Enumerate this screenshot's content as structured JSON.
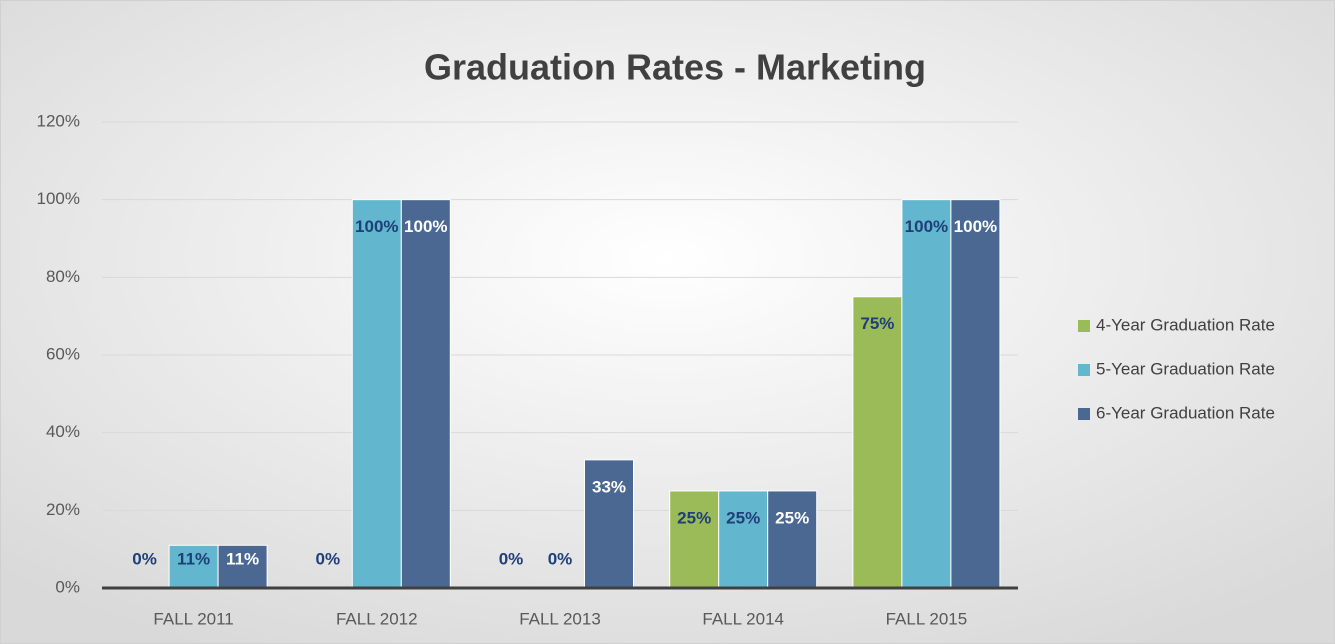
{
  "chart_data": {
    "type": "bar",
    "title": "Graduation Rates - Marketing",
    "categories": [
      "FALL 2011",
      "FALL 2012",
      "FALL 2013",
      "FALL 2014",
      "FALL 2015"
    ],
    "series": [
      {
        "name": "4-Year Graduation Rate",
        "color": "#9bbb59",
        "values": [
          0,
          0,
          0,
          25,
          75
        ],
        "value_labels": [
          "0%",
          "0%",
          "0%",
          "25%",
          "75%"
        ]
      },
      {
        "name": "5-Year Graduation Rate",
        "color": "#62b6cd",
        "values": [
          11,
          100,
          0,
          25,
          100
        ],
        "value_labels": [
          "11%",
          "100%",
          "0%",
          "25%",
          "100%"
        ]
      },
      {
        "name": "6-Year Graduation Rate",
        "color": "#4a6891",
        "values": [
          11,
          100,
          33,
          25,
          100
        ],
        "value_labels": [
          "11%",
          "100%",
          "33%",
          "25%",
          "100%"
        ]
      }
    ],
    "ylim": [
      0,
      120
    ],
    "yticks": [
      {
        "value": 0,
        "label": "0%"
      },
      {
        "value": 20,
        "label": "20%"
      },
      {
        "value": 40,
        "label": "40%"
      },
      {
        "value": 60,
        "label": "60%"
      },
      {
        "value": 80,
        "label": "80%"
      },
      {
        "value": 100,
        "label": "100%"
      },
      {
        "value": 120,
        "label": "120%"
      }
    ],
    "grid": true,
    "legend": "right"
  }
}
